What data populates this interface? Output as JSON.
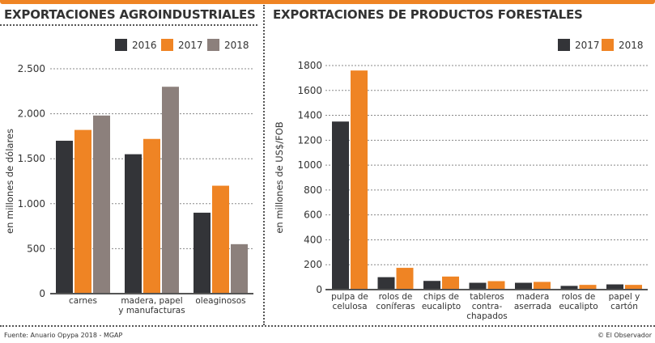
{
  "header": {
    "left_title": "EXPORTACIONES AGROINDUSTRIALES",
    "right_title": "EXPORTACIONES DE PRODUCTOS FORESTALES"
  },
  "footer": {
    "source": "Fuente: Anuario Opypa 2018 - MGAP",
    "credit": "© El Observador"
  },
  "colors": {
    "accent": "#ef8424",
    "dark": "#333438",
    "gray": "#8c807c",
    "text": "#333333"
  },
  "chart_data": [
    {
      "type": "bar",
      "title": "EXPORTACIONES AGROINDUSTRIALES",
      "xlabel": "",
      "ylabel": "en millones de dólares",
      "categories": [
        [
          "carnes"
        ],
        [
          "madera, papel",
          "y manufacturas"
        ],
        [
          "oleaginosos"
        ]
      ],
      "series": [
        {
          "name": "2016",
          "color": "#333438",
          "values": [
            1700,
            1550,
            900
          ]
        },
        {
          "name": "2017",
          "color": "#ef8424",
          "values": [
            1820,
            1720,
            1200
          ]
        },
        {
          "name": "2018",
          "color": "#8c807c",
          "values": [
            1980,
            2300,
            550
          ]
        }
      ],
      "ylim": [
        0,
        2500
      ],
      "yticks": [
        0,
        500,
        1000,
        1500,
        2000,
        2500
      ],
      "ytick_labels": [
        "0",
        "500",
        "1.000",
        "1.500",
        "2.000",
        "2.500"
      ],
      "grid": true,
      "legend": "top-right"
    },
    {
      "type": "bar",
      "title": "EXPORTACIONES DE PRODUCTOS FORESTALES",
      "xlabel": "",
      "ylabel": "en millones de US$/FOB",
      "categories": [
        [
          "pulpa de",
          "celulosa"
        ],
        [
          "rolos de",
          "coníferas"
        ],
        [
          "chips de",
          "eucalipto"
        ],
        [
          "tableros",
          "contra-",
          "chapados"
        ],
        [
          "madera",
          "aserrada"
        ],
        [
          "rolos de",
          "eucalipto"
        ],
        [
          "papel y",
          "cartón"
        ]
      ],
      "series": [
        {
          "name": "2017",
          "color": "#333438",
          "values": [
            1350,
            100,
            70,
            55,
            55,
            30,
            42
          ]
        },
        {
          "name": "2018",
          "color": "#ef8424",
          "values": [
            1760,
            175,
            105,
            68,
            62,
            38,
            38
          ]
        }
      ],
      "ylim": [
        0,
        1800
      ],
      "yticks": [
        0,
        200,
        400,
        600,
        800,
        1000,
        1200,
        1400,
        1600,
        1800
      ],
      "ytick_labels": [
        "0",
        "200",
        "400",
        "600",
        "800",
        "1000",
        "1200",
        "1400",
        "1600",
        "1800"
      ],
      "grid": true,
      "legend": "top-right"
    }
  ]
}
